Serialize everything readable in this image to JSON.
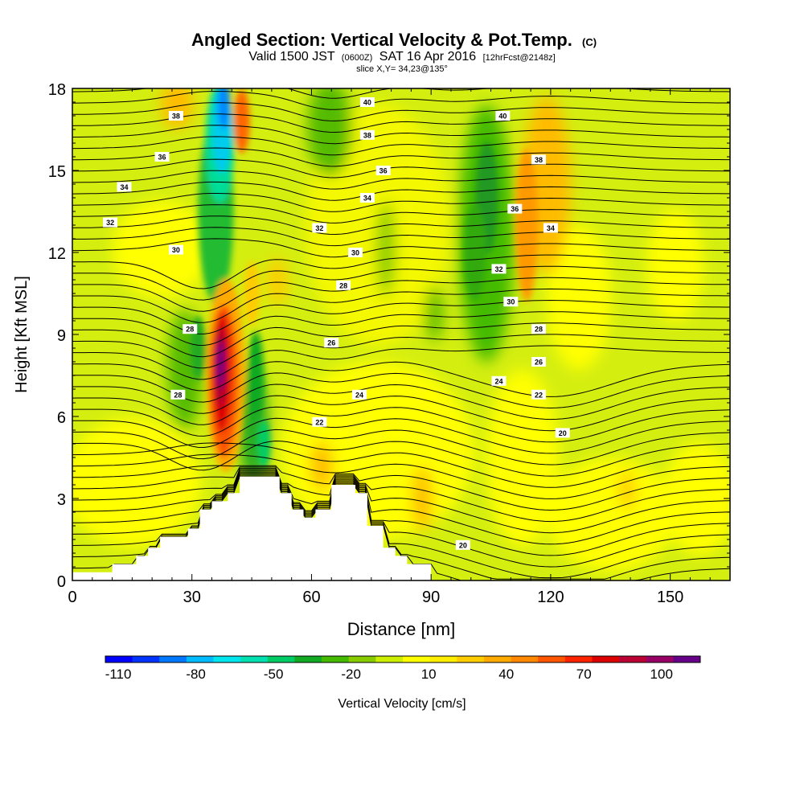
{
  "chart_data": {
    "type": "heatmap",
    "title": "Angled Section: Vertical Velocity & Pot.Temp.",
    "title_unit": "(C)",
    "subtitle_main": "Valid 1500 JST",
    "subtitle_utc": "(0600Z)",
    "subtitle_date": "SAT 16 Apr 2016",
    "subtitle_fcst": "[12hrFcst@2148z]",
    "subtitle2": "slice X,Y= 34,23@135°",
    "xlabel": "Distance [nm]",
    "ylabel": "Height [Kft MSL]",
    "xlim": [
      0,
      165
    ],
    "ylim": [
      0,
      18
    ],
    "x_ticks": [
      0,
      30,
      60,
      90,
      120,
      150
    ],
    "y_ticks": [
      0,
      3,
      6,
      9,
      12,
      15,
      18
    ],
    "colorbar": {
      "label": "Vertical Velocity [cm/s]",
      "tick_labels": [
        "-110",
        "-80",
        "-50",
        "-20",
        "10",
        "40",
        "70",
        "100"
      ],
      "range": [
        -115,
        115
      ],
      "colors": [
        "#0000ff",
        "#0033ff",
        "#0077ff",
        "#00bbff",
        "#00e5ee",
        "#00e0b0",
        "#00cc66",
        "#11aa22",
        "#44bb00",
        "#88cc00",
        "#ccee00",
        "#ffff00",
        "#ffee00",
        "#ffcc00",
        "#ffaa00",
        "#ff8800",
        "#ff5500",
        "#ff2200",
        "#dd0000",
        "#bb0033",
        "#990066",
        "#660088"
      ]
    },
    "theta_contour_labels": [
      {
        "text": "38",
        "x": 26,
        "y": 17.0
      },
      {
        "text": "36",
        "x": 22.5,
        "y": 15.5
      },
      {
        "text": "34",
        "x": 13,
        "y": 14.4
      },
      {
        "text": "32",
        "x": 9.5,
        "y": 13.1
      },
      {
        "text": "30",
        "x": 26,
        "y": 12.1
      },
      {
        "text": "28",
        "x": 29.5,
        "y": 9.2
      },
      {
        "text": "28",
        "x": 26.5,
        "y": 6.8
      },
      {
        "text": "40",
        "x": 74,
        "y": 17.5
      },
      {
        "text": "38",
        "x": 74,
        "y": 16.3
      },
      {
        "text": "36",
        "x": 78,
        "y": 15.0
      },
      {
        "text": "34",
        "x": 74,
        "y": 14.0
      },
      {
        "text": "32",
        "x": 62,
        "y": 12.9
      },
      {
        "text": "30",
        "x": 71,
        "y": 12.0
      },
      {
        "text": "28",
        "x": 68,
        "y": 10.8
      },
      {
        "text": "26",
        "x": 65,
        "y": 8.7
      },
      {
        "text": "24",
        "x": 72,
        "y": 6.8
      },
      {
        "text": "22",
        "x": 62,
        "y": 5.8
      },
      {
        "text": "40",
        "x": 108,
        "y": 17.0
      },
      {
        "text": "38",
        "x": 117,
        "y": 15.4
      },
      {
        "text": "36",
        "x": 111,
        "y": 13.6
      },
      {
        "text": "34",
        "x": 120,
        "y": 12.9
      },
      {
        "text": "32",
        "x": 107,
        "y": 11.4
      },
      {
        "text": "30",
        "x": 110,
        "y": 10.2
      },
      {
        "text": "28",
        "x": 117,
        "y": 9.2
      },
      {
        "text": "26",
        "x": 117,
        "y": 8.0
      },
      {
        "text": "24",
        "x": 107,
        "y": 7.3
      },
      {
        "text": "22",
        "x": 117,
        "y": 6.8
      },
      {
        "text": "20",
        "x": 123,
        "y": 5.4
      },
      {
        "text": "20",
        "x": 98,
        "y": 1.3
      }
    ],
    "terrain": [
      [
        0,
        0
      ],
      [
        0,
        0.3
      ],
      [
        10,
        0.3
      ],
      [
        10,
        0.6
      ],
      [
        16,
        0.6
      ],
      [
        16,
        0.9
      ],
      [
        19,
        0.9
      ],
      [
        19,
        1.2
      ],
      [
        22,
        1.2
      ],
      [
        22,
        1.6
      ],
      [
        29,
        1.6
      ],
      [
        29,
        1.9
      ],
      [
        32,
        1.9
      ],
      [
        32,
        2.6
      ],
      [
        35,
        2.6
      ],
      [
        35,
        2.9
      ],
      [
        39,
        2.9
      ],
      [
        39,
        3.2
      ],
      [
        42,
        3.2
      ],
      [
        42,
        3.8
      ],
      [
        52,
        3.8
      ],
      [
        52,
        3.2
      ],
      [
        55,
        3.2
      ],
      [
        55,
        2.6
      ],
      [
        58,
        2.6
      ],
      [
        58,
        2.3
      ],
      [
        61,
        2.3
      ],
      [
        61,
        2.6
      ],
      [
        65,
        2.6
      ],
      [
        65,
        3.5
      ],
      [
        71,
        3.5
      ],
      [
        71,
        3.2
      ],
      [
        74,
        3.2
      ],
      [
        74,
        2.0
      ],
      [
        78,
        2.0
      ],
      [
        78,
        1.2
      ],
      [
        81,
        1.2
      ],
      [
        81,
        0.9
      ],
      [
        84,
        0.9
      ],
      [
        84,
        0.6
      ],
      [
        90,
        0.6
      ],
      [
        90,
        0
      ],
      [
        0,
        0
      ]
    ]
  }
}
